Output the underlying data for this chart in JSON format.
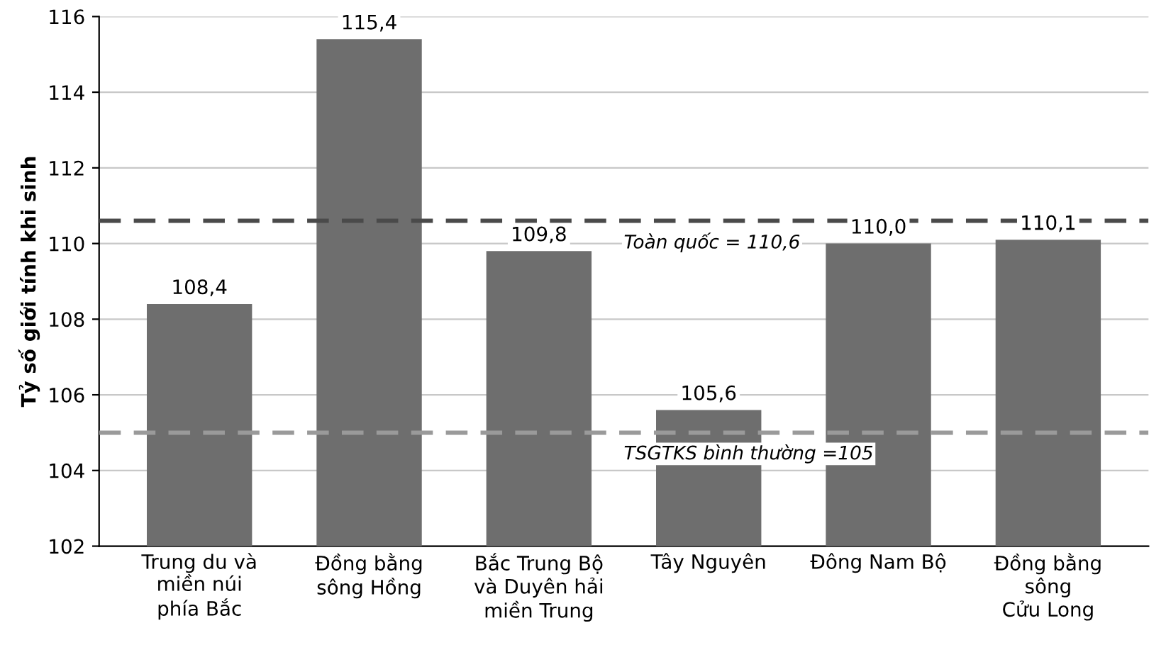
{
  "chart_data": {
    "type": "bar",
    "ylabel": "Tỷ số giới tính khi sinh",
    "categories": [
      "Trung du và\nmiền núi\nphía Bắc",
      "Đồng bằng\nsông Hồng",
      "Bắc Trung Bộ\nvà Duyên hải\nmiền Trung",
      "Tây Nguyên",
      "Đông Nam Bộ",
      "Đồng bằng\nsông\nCửu Long"
    ],
    "values": [
      108.4,
      115.4,
      109.8,
      105.6,
      110.0,
      110.1
    ],
    "value_labels": [
      "108,4",
      "115,4",
      "109,8",
      "105,6",
      "110,0",
      "110,1"
    ],
    "color": "#6e6e6e",
    "ylim": [
      102,
      116
    ],
    "yticks": [
      102,
      104,
      106,
      108,
      110,
      112,
      114,
      116
    ],
    "grid": "y",
    "ref_lines": [
      {
        "axis": "y",
        "value": 110.6,
        "label": "Toàn quốc = 110,6",
        "color": "#4a4a4a",
        "line_style": "dashed"
      },
      {
        "axis": "y",
        "value": 105,
        "label": "TSGTKS bình thường =105",
        "color": "#9a9a9a",
        "line_style": "dashed"
      }
    ]
  }
}
